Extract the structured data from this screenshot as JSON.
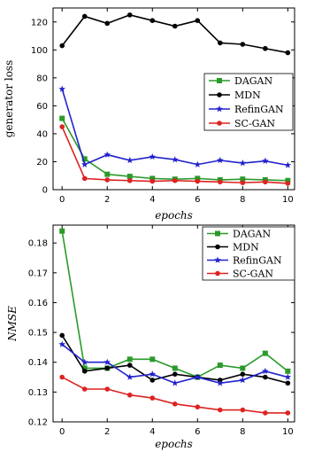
{
  "chart_data": [
    {
      "type": "line",
      "xlabel": "epochs",
      "ylabel": "generator loss",
      "xlim": [
        -0.4,
        10.3
      ],
      "ylim": [
        0,
        130
      ],
      "xticks": [
        "0",
        "2",
        "4",
        "6",
        "8",
        "10"
      ],
      "yticks": [
        "0",
        "20",
        "40",
        "60",
        "80",
        "100",
        "120"
      ],
      "legend_position": "center-right",
      "x": [
        0,
        1,
        2,
        3,
        4,
        5,
        6,
        7,
        8,
        9,
        10
      ],
      "series": [
        {
          "name": "DAGAN",
          "color": "#2a9a2a",
          "marker": "square",
          "values": [
            51,
            22,
            11,
            9.5,
            8,
            7.5,
            8,
            7,
            7.5,
            7,
            6.5
          ]
        },
        {
          "name": "MDN",
          "color": "#000000",
          "marker": "circle",
          "values": [
            103,
            124,
            119,
            125,
            121,
            117,
            121,
            105,
            104,
            101,
            98
          ]
        },
        {
          "name": "RefinGAN",
          "color": "#2222cc",
          "marker": "star",
          "values": [
            72,
            18,
            25,
            21,
            23.5,
            21.5,
            18,
            21,
            19,
            20.5,
            17.5
          ]
        },
        {
          "name": "SC-GAN",
          "color": "#dd2222",
          "marker": "circle",
          "values": [
            45,
            8,
            7,
            6.5,
            6,
            6.5,
            6,
            5.5,
            5,
            5.5,
            4.5
          ]
        }
      ]
    },
    {
      "type": "line",
      "xlabel": "epochs",
      "ylabel": "NMSE",
      "xlim": [
        -0.4,
        10.3
      ],
      "ylim": [
        0.12,
        0.186
      ],
      "xticks": [
        "0",
        "2",
        "4",
        "6",
        "8",
        "10"
      ],
      "yticks": [
        "0.12",
        "0.13",
        "0.14",
        "0.15",
        "0.16",
        "0.17",
        "0.18"
      ],
      "legend_position": "top-right",
      "x": [
        0,
        1,
        2,
        3,
        4,
        5,
        6,
        7,
        8,
        9,
        10
      ],
      "series": [
        {
          "name": "DAGAN",
          "color": "#2a9a2a",
          "marker": "square",
          "values": [
            0.184,
            0.138,
            0.138,
            0.141,
            0.141,
            0.138,
            0.135,
            0.139,
            0.138,
            0.143,
            0.137
          ]
        },
        {
          "name": "MDN",
          "color": "#000000",
          "marker": "circle",
          "values": [
            0.149,
            0.137,
            0.138,
            0.139,
            0.134,
            0.136,
            0.135,
            0.134,
            0.136,
            0.135,
            0.133
          ]
        },
        {
          "name": "RefinGAN",
          "color": "#2222cc",
          "marker": "star",
          "values": [
            0.146,
            0.14,
            0.14,
            0.135,
            0.136,
            0.133,
            0.135,
            0.133,
            0.134,
            0.137,
            0.135
          ]
        },
        {
          "name": "SC-GAN",
          "color": "#dd2222",
          "marker": "circle",
          "values": [
            0.135,
            0.131,
            0.131,
            0.129,
            0.128,
            0.126,
            0.125,
            0.124,
            0.124,
            0.123,
            0.123
          ]
        }
      ]
    }
  ]
}
